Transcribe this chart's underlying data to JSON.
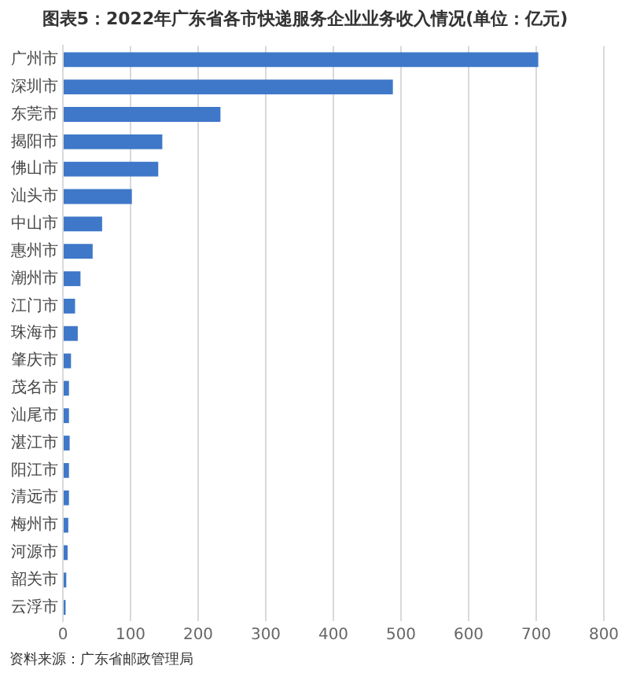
{
  "chart_data": {
    "type": "bar",
    "orientation": "horizontal",
    "title": "图表5：2022年广东省各市快递服务企业业务收入情况(单位：亿元)",
    "categories": [
      "广州市",
      "深圳市",
      "东莞市",
      "揭阳市",
      "佛山市",
      "汕头市",
      "中山市",
      "惠州市",
      "潮州市",
      "江门市",
      "珠海市",
      "肇庆市",
      "茂名市",
      "汕尾市",
      "湛江市",
      "阳江市",
      "清远市",
      "梅州市",
      "河源市",
      "韶关市",
      "云浮市"
    ],
    "values": [
      703,
      488,
      233,
      147,
      141,
      102,
      58,
      44,
      26,
      18,
      22,
      12,
      9,
      9,
      10,
      9,
      9,
      8,
      7,
      5,
      4
    ],
    "color": "#3f78c9",
    "xlim": [
      0,
      800
    ],
    "xticks": [
      0,
      100,
      200,
      300,
      400,
      500,
      600,
      700,
      800
    ],
    "grid": "x",
    "legend": false,
    "annotations": [
      "资料来源：广东省邮政管理局"
    ]
  }
}
